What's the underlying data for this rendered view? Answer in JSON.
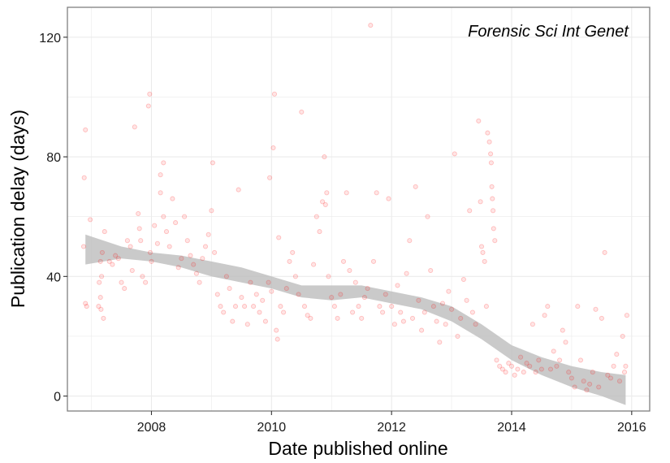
{
  "chart_data": {
    "type": "scatter",
    "annotation": "Forensic Sci Int Genet",
    "xlabel": "Date published online",
    "ylabel": "Publication delay (days)",
    "x_scale": "date (years)",
    "xlim": [
      2006.6,
      2016.3
    ],
    "ylim": [
      -5,
      130
    ],
    "x_ticks": [
      {
        "value": 2008,
        "label": "2008"
      },
      {
        "value": 2010,
        "label": "2010"
      },
      {
        "value": 2012,
        "label": "2012"
      },
      {
        "value": 2014,
        "label": "2014"
      },
      {
        "value": 2016,
        "label": "2016"
      }
    ],
    "y_ticks": [
      {
        "value": 0,
        "label": "0"
      },
      {
        "value": 40,
        "label": "40"
      },
      {
        "value": 80,
        "label": "80"
      },
      {
        "value": 120,
        "label": "120"
      }
    ],
    "grid": true,
    "colors": {
      "points": "#ff0000",
      "band": "#bdbdbd",
      "grid": "#ebebeb",
      "border": "#7f7f7f"
    },
    "series": [
      {
        "points": [
          [
            2006.88,
            73
          ],
          [
            2006.9,
            89
          ],
          [
            2006.87,
            50
          ],
          [
            2006.9,
            31
          ],
          [
            2006.92,
            30
          ],
          [
            2006.98,
            59
          ],
          [
            2007.12,
            30
          ],
          [
            2007.15,
            33
          ],
          [
            2007.13,
            38
          ],
          [
            2007.17,
            40
          ],
          [
            2007.15,
            45
          ],
          [
            2007.18,
            48
          ],
          [
            2007.2,
            26
          ],
          [
            2007.16,
            29
          ],
          [
            2007.22,
            55
          ],
          [
            2007.3,
            45
          ],
          [
            2007.35,
            44
          ],
          [
            2007.4,
            47
          ],
          [
            2007.45,
            46
          ],
          [
            2007.5,
            38
          ],
          [
            2007.55,
            36
          ],
          [
            2007.6,
            52
          ],
          [
            2007.65,
            50
          ],
          [
            2007.68,
            42
          ],
          [
            2007.72,
            90
          ],
          [
            2007.78,
            61
          ],
          [
            2007.8,
            56
          ],
          [
            2007.82,
            52
          ],
          [
            2007.85,
            40
          ],
          [
            2007.9,
            38
          ],
          [
            2007.95,
            97
          ],
          [
            2007.97,
            101
          ],
          [
            2007.98,
            48
          ],
          [
            2008.0,
            45
          ],
          [
            2008.05,
            57
          ],
          [
            2008.1,
            51
          ],
          [
            2008.15,
            74
          ],
          [
            2008.2,
            78
          ],
          [
            2008.15,
            68
          ],
          [
            2008.2,
            60
          ],
          [
            2008.25,
            55
          ],
          [
            2008.3,
            50
          ],
          [
            2008.35,
            66
          ],
          [
            2008.4,
            58
          ],
          [
            2008.45,
            43
          ],
          [
            2008.5,
            46
          ],
          [
            2008.55,
            60
          ],
          [
            2008.6,
            52
          ],
          [
            2008.65,
            47
          ],
          [
            2008.7,
            44
          ],
          [
            2008.75,
            41
          ],
          [
            2008.8,
            38
          ],
          [
            2008.85,
            46
          ],
          [
            2008.9,
            50
          ],
          [
            2008.95,
            54
          ],
          [
            2009.0,
            62
          ],
          [
            2009.02,
            78
          ],
          [
            2009.05,
            48
          ],
          [
            2009.1,
            34
          ],
          [
            2009.15,
            30
          ],
          [
            2009.2,
            28
          ],
          [
            2009.25,
            40
          ],
          [
            2009.3,
            36
          ],
          [
            2009.35,
            25
          ],
          [
            2009.4,
            30
          ],
          [
            2009.45,
            69
          ],
          [
            2009.5,
            33
          ],
          [
            2009.55,
            30
          ],
          [
            2009.6,
            24
          ],
          [
            2009.65,
            38
          ],
          [
            2009.7,
            30
          ],
          [
            2009.75,
            34
          ],
          [
            2009.8,
            28
          ],
          [
            2009.85,
            32
          ],
          [
            2009.9,
            25
          ],
          [
            2009.95,
            38
          ],
          [
            2009.97,
            73
          ],
          [
            2010.0,
            35
          ],
          [
            2010.03,
            83
          ],
          [
            2010.05,
            101
          ],
          [
            2010.08,
            22
          ],
          [
            2010.1,
            19
          ],
          [
            2010.12,
            53
          ],
          [
            2010.15,
            30
          ],
          [
            2010.2,
            28
          ],
          [
            2010.25,
            36
          ],
          [
            2010.3,
            45
          ],
          [
            2010.35,
            48
          ],
          [
            2010.4,
            40
          ],
          [
            2010.45,
            34
          ],
          [
            2010.5,
            95
          ],
          [
            2010.55,
            30
          ],
          [
            2010.6,
            27
          ],
          [
            2010.65,
            26
          ],
          [
            2010.7,
            44
          ],
          [
            2010.75,
            60
          ],
          [
            2010.8,
            55
          ],
          [
            2010.85,
            65
          ],
          [
            2010.88,
            80
          ],
          [
            2010.9,
            64
          ],
          [
            2010.92,
            68
          ],
          [
            2010.95,
            40
          ],
          [
            2011.0,
            33
          ],
          [
            2011.05,
            30
          ],
          [
            2011.1,
            26
          ],
          [
            2011.15,
            34
          ],
          [
            2011.2,
            45
          ],
          [
            2011.25,
            68
          ],
          [
            2011.3,
            42
          ],
          [
            2011.35,
            28
          ],
          [
            2011.4,
            38
          ],
          [
            2011.45,
            30
          ],
          [
            2011.5,
            26
          ],
          [
            2011.55,
            33
          ],
          [
            2011.6,
            36
          ],
          [
            2011.65,
            124
          ],
          [
            2011.7,
            45
          ],
          [
            2011.75,
            68
          ],
          [
            2011.8,
            30
          ],
          [
            2011.85,
            28
          ],
          [
            2011.9,
            34
          ],
          [
            2011.95,
            66
          ],
          [
            2012.0,
            30
          ],
          [
            2012.05,
            24
          ],
          [
            2012.1,
            37
          ],
          [
            2012.15,
            28
          ],
          [
            2012.2,
            25
          ],
          [
            2012.25,
            41
          ],
          [
            2012.3,
            52
          ],
          [
            2012.35,
            26
          ],
          [
            2012.4,
            70
          ],
          [
            2012.45,
            32
          ],
          [
            2012.5,
            22
          ],
          [
            2012.55,
            28
          ],
          [
            2012.6,
            60
          ],
          [
            2012.65,
            42
          ],
          [
            2012.7,
            30
          ],
          [
            2012.75,
            25
          ],
          [
            2012.8,
            18
          ],
          [
            2012.85,
            31
          ],
          [
            2012.9,
            24
          ],
          [
            2012.95,
            35
          ],
          [
            2013.0,
            29
          ],
          [
            2013.05,
            81
          ],
          [
            2013.1,
            20
          ],
          [
            2013.15,
            26
          ],
          [
            2013.2,
            39
          ],
          [
            2013.25,
            32
          ],
          [
            2013.3,
            62
          ],
          [
            2013.35,
            28
          ],
          [
            2013.4,
            24
          ],
          [
            2013.45,
            92
          ],
          [
            2013.48,
            65
          ],
          [
            2013.5,
            50
          ],
          [
            2013.52,
            48
          ],
          [
            2013.55,
            45
          ],
          [
            2013.58,
            30
          ],
          [
            2013.6,
            88
          ],
          [
            2013.63,
            85
          ],
          [
            2013.65,
            81
          ],
          [
            2013.66,
            78
          ],
          [
            2013.67,
            70
          ],
          [
            2013.68,
            66
          ],
          [
            2013.69,
            62
          ],
          [
            2013.7,
            56
          ],
          [
            2013.72,
            52
          ],
          [
            2013.75,
            12
          ],
          [
            2013.8,
            10
          ],
          [
            2013.85,
            9
          ],
          [
            2013.9,
            8
          ],
          [
            2013.95,
            11
          ],
          [
            2014.0,
            10
          ],
          [
            2014.05,
            7
          ],
          [
            2014.1,
            9
          ],
          [
            2014.15,
            13
          ],
          [
            2014.2,
            8
          ],
          [
            2014.25,
            11
          ],
          [
            2014.3,
            10
          ],
          [
            2014.35,
            24
          ],
          [
            2014.4,
            8
          ],
          [
            2014.45,
            12
          ],
          [
            2014.5,
            9
          ],
          [
            2014.55,
            27
          ],
          [
            2014.6,
            30
          ],
          [
            2014.65,
            9
          ],
          [
            2014.7,
            15
          ],
          [
            2014.75,
            10
          ],
          [
            2014.8,
            12
          ],
          [
            2014.85,
            22
          ],
          [
            2014.9,
            18
          ],
          [
            2014.95,
            8
          ],
          [
            2015.0,
            6
          ],
          [
            2015.05,
            3
          ],
          [
            2015.1,
            30
          ],
          [
            2015.15,
            12
          ],
          [
            2015.2,
            5
          ],
          [
            2015.25,
            2
          ],
          [
            2015.3,
            4
          ],
          [
            2015.35,
            8
          ],
          [
            2015.4,
            29
          ],
          [
            2015.45,
            3
          ],
          [
            2015.5,
            26
          ],
          [
            2015.55,
            48
          ],
          [
            2015.6,
            7
          ],
          [
            2015.65,
            6
          ],
          [
            2015.7,
            10
          ],
          [
            2015.75,
            14
          ],
          [
            2015.8,
            5
          ],
          [
            2015.85,
            20
          ],
          [
            2015.88,
            8
          ],
          [
            2015.9,
            10
          ],
          [
            2015.92,
            27
          ]
        ]
      }
    ],
    "smooth_band": {
      "x": [
        2006.9,
        2007.5,
        2008.0,
        2008.5,
        2009.0,
        2009.5,
        2010.0,
        2010.5,
        2011.0,
        2011.5,
        2012.0,
        2012.5,
        2013.0,
        2013.5,
        2014.0,
        2014.5,
        2015.0,
        2015.5,
        2015.9
      ],
      "lower": [
        44,
        46,
        45,
        43,
        40,
        38,
        36,
        33,
        32,
        33,
        31,
        29,
        25,
        19,
        12,
        7,
        3,
        0,
        -3
      ],
      "upper": [
        54,
        50,
        48,
        47,
        45,
        43,
        40,
        37,
        37,
        37,
        35,
        33,
        30,
        24,
        17,
        13,
        10,
        8,
        7
      ]
    }
  }
}
